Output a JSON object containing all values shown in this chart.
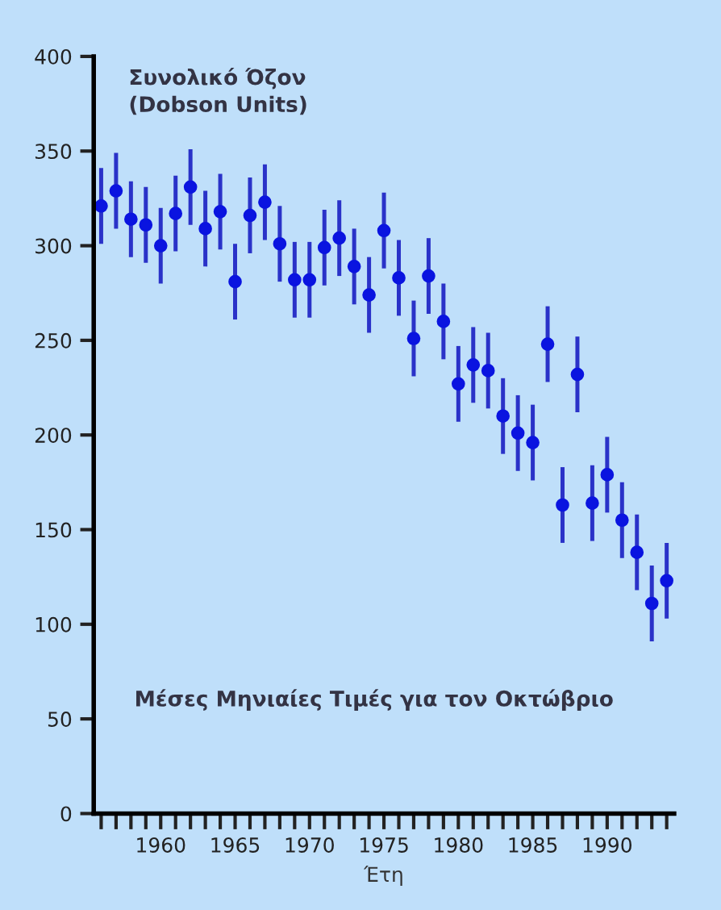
{
  "chart_data": {
    "type": "scatter",
    "ylabel": "Συνολικό Όζον\n(Dobson Units)",
    "xlabel": "Έτη",
    "annotations": [
      "Μέσες Μηνιαίες Τιμές για τον Οκτώβριο"
    ],
    "x": [
      1956,
      1957,
      1958,
      1959,
      1960,
      1961,
      1962,
      1963,
      1964,
      1965,
      1966,
      1967,
      1968,
      1969,
      1970,
      1971,
      1972,
      1973,
      1974,
      1975,
      1976,
      1977,
      1978,
      1979,
      1980,
      1981,
      1982,
      1983,
      1984,
      1985,
      1986,
      1987,
      1988,
      1989,
      1990,
      1991,
      1992,
      1993,
      1994
    ],
    "series": [
      {
        "color": "#0a14e0",
        "values": [
          321,
          329,
          314,
          311,
          300,
          317,
          331,
          309,
          318,
          281,
          316,
          323,
          301,
          282,
          282,
          299,
          304,
          289,
          274,
          308,
          283,
          251,
          284,
          260,
          227,
          237,
          234,
          210,
          201,
          196,
          248,
          163,
          232,
          164,
          179,
          155,
          138,
          111,
          123
        ],
        "errors": [
          20,
          20,
          20,
          20,
          20,
          20,
          20,
          20,
          20,
          20,
          20,
          20,
          20,
          20,
          20,
          20,
          20,
          20,
          20,
          20,
          20,
          20,
          20,
          20,
          20,
          20,
          20,
          20,
          20,
          20,
          20,
          20,
          20,
          20,
          20,
          20,
          20,
          20,
          20
        ]
      }
    ],
    "marker": "circle",
    "xlim": [
      1955.5,
      1994.5
    ],
    "xticks": [
      {
        "value": 1956,
        "label": null
      },
      {
        "value": 1957,
        "label": null
      },
      {
        "value": 1958,
        "label": null
      },
      {
        "value": 1959,
        "label": null
      },
      1960,
      {
        "value": 1961,
        "label": null
      },
      {
        "value": 1962,
        "label": null
      },
      {
        "value": 1963,
        "label": null
      },
      {
        "value": 1964,
        "label": null
      },
      1965,
      {
        "value": 1966,
        "label": null
      },
      {
        "value": 1967,
        "label": null
      },
      {
        "value": 1968,
        "label": null
      },
      {
        "value": 1969,
        "label": null
      },
      1970,
      {
        "value": 1971,
        "label": null
      },
      {
        "value": 1972,
        "label": null
      },
      {
        "value": 1973,
        "label": null
      },
      {
        "value": 1974,
        "label": null
      },
      1975,
      {
        "value": 1976,
        "label": null
      },
      {
        "value": 1977,
        "label": null
      },
      {
        "value": 1978,
        "label": null
      },
      {
        "value": 1979,
        "label": null
      },
      1980,
      {
        "value": 1981,
        "label": null
      },
      {
        "value": 1982,
        "label": null
      },
      {
        "value": 1983,
        "label": null
      },
      {
        "value": 1984,
        "label": null
      },
      1985,
      {
        "value": 1986,
        "label": null
      },
      {
        "value": 1987,
        "label": null
      },
      {
        "value": 1988,
        "label": null
      },
      {
        "value": 1989,
        "label": null
      },
      1990,
      {
        "value": 1991,
        "label": null
      },
      {
        "value": 1992,
        "label": null
      },
      {
        "value": 1993,
        "label": null
      },
      {
        "value": 1994,
        "label": null
      }
    ],
    "ylim": [
      0,
      400
    ],
    "yticks": [
      0,
      50,
      100,
      150,
      200,
      250,
      300,
      350,
      400
    ],
    "grid": false,
    "legend": false
  }
}
